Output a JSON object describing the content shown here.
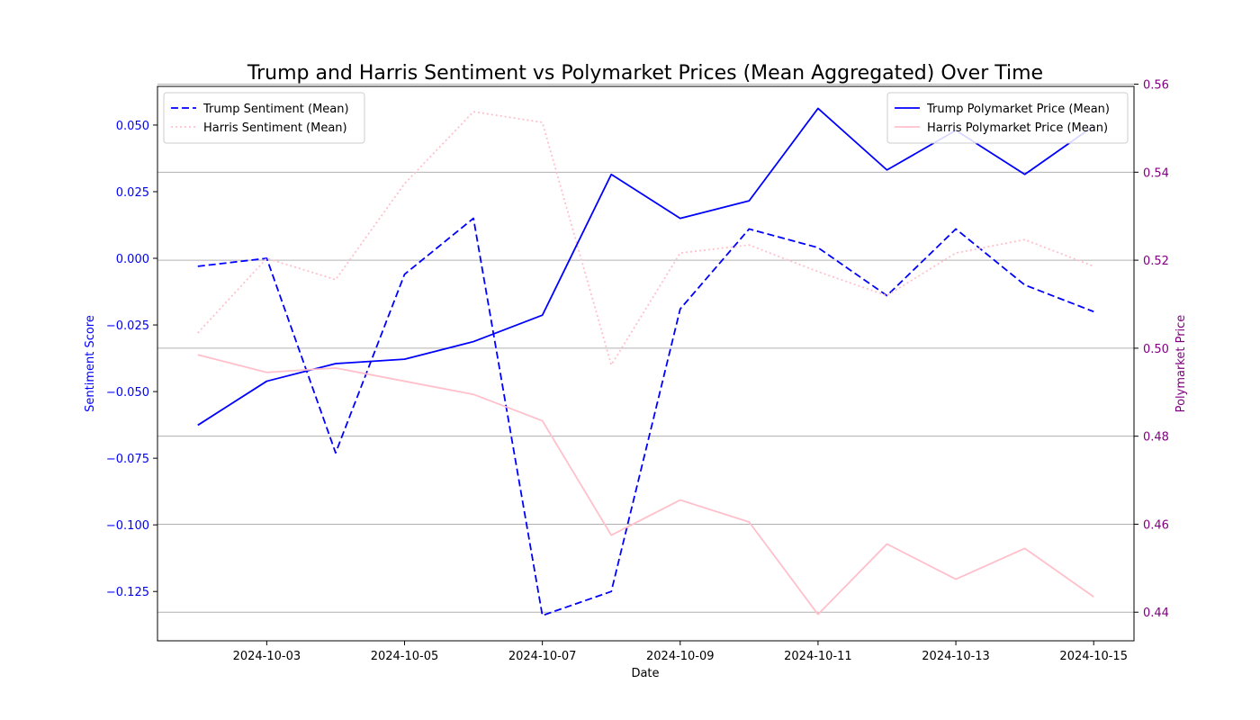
{
  "chart_data": {
    "type": "line",
    "title": "Trump and Harris Sentiment vs Polymarket Prices (Mean Aggregated) Over Time",
    "xlabel": "Date",
    "ylabel_left": "Sentiment Score",
    "ylabel_right": "Polymarket Price",
    "colors": {
      "left_axis": "#0000ff",
      "right_axis": "#800080",
      "trump": "#0000ff",
      "harris": "#ffc0cb"
    },
    "x": [
      "2024-10-02",
      "2024-10-03",
      "2024-10-04",
      "2024-10-05",
      "2024-10-06",
      "2024-10-07",
      "2024-10-08",
      "2024-10-09",
      "2024-10-10",
      "2024-10-11",
      "2024-10-12",
      "2024-10-13",
      "2024-10-14",
      "2024-10-15"
    ],
    "xticks": [
      "2024-10-03",
      "2024-10-05",
      "2024-10-07",
      "2024-10-09",
      "2024-10-11",
      "2024-10-13",
      "2024-10-15"
    ],
    "ylim_left": [
      -0.1435,
      0.0645
    ],
    "yticks_left": [
      "0.050",
      "0.025",
      "0.000",
      "−0.025",
      "−0.050",
      "−0.075",
      "−0.100",
      "−0.125"
    ],
    "ylim_right": [
      0.4335,
      0.5595
    ],
    "yticks_right": [
      "0.56",
      "0.54",
      "0.52",
      "0.50",
      "0.48",
      "0.46",
      "0.44"
    ],
    "grid": "right-axis horizontal",
    "legend_left": "top-left",
    "legend_right": "top-right",
    "series": [
      {
        "name": "Trump Sentiment (Mean)",
        "axis": "left",
        "style": "dashed",
        "color": "#0000ff",
        "values": [
          -0.003,
          0.0,
          -0.073,
          -0.006,
          0.015,
          -0.134,
          -0.125,
          -0.019,
          0.011,
          0.004,
          -0.014,
          0.011,
          -0.01,
          -0.02
        ]
      },
      {
        "name": "Harris Sentiment (Mean)",
        "axis": "left",
        "style": "dotted",
        "color": "#ffc0cb",
        "values": [
          -0.028,
          0.0,
          -0.008,
          0.028,
          0.055,
          0.051,
          -0.04,
          0.002,
          0.005,
          -0.005,
          -0.014,
          0.002,
          0.007,
          -0.003
        ]
      },
      {
        "name": "Trump Polymarket Price (Mean)",
        "axis": "right",
        "style": "solid",
        "color": "#0000ff",
        "values": [
          0.4825,
          0.4925,
          0.4965,
          0.4975,
          0.5015,
          0.5075,
          0.5395,
          0.5295,
          0.5335,
          0.5545,
          0.5405,
          0.5495,
          0.5395,
          0.5505
        ]
      },
      {
        "name": "Harris Polymarket Price (Mean)",
        "axis": "right",
        "style": "solid",
        "color": "#ffc0cb",
        "values": [
          0.4985,
          0.4945,
          0.4955,
          0.4925,
          0.4895,
          0.4835,
          0.4575,
          0.4655,
          0.4605,
          0.4395,
          0.4555,
          0.4475,
          0.4545,
          0.4435
        ]
      }
    ]
  }
}
